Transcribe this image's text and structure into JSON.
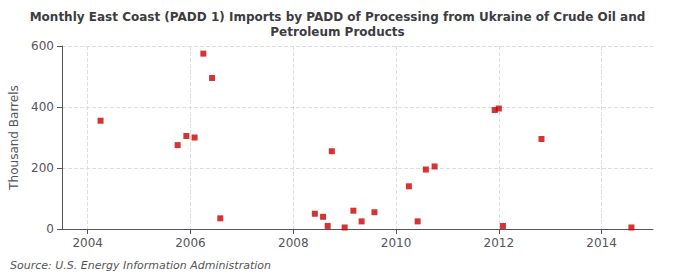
{
  "chart_data": {
    "type": "scatter",
    "title": "Monthly East Coast (PADD 1) Imports by PADD of Processing from Ukraine of Crude Oil and\nPetroleum Products",
    "ylabel": "Thousand Barrels",
    "annotations": [
      "Source: U.S. Energy Information Administration"
    ],
    "x": [
      2004.25,
      2005.75,
      2005.92,
      2006.08,
      2006.25,
      2006.42,
      2006.58,
      2008.42,
      2008.58,
      2008.67,
      2008.75,
      2009.0,
      2009.17,
      2009.33,
      2009.58,
      2010.25,
      2010.42,
      2010.58,
      2010.75,
      2011.92,
      2012.0,
      2012.08,
      2012.83,
      2014.58
    ],
    "values": [
      355,
      275,
      305,
      300,
      575,
      495,
      35,
      50,
      40,
      10,
      255,
      5,
      60,
      25,
      55,
      140,
      25,
      195,
      205,
      390,
      395,
      10,
      295,
      5
    ],
    "color": "#cc0000",
    "marker": "square",
    "xlim": [
      2003.5,
      2015.0
    ],
    "xticks": [
      2004,
      2006,
      2008,
      2010,
      2012,
      2014
    ],
    "ylim": [
      0,
      600
    ],
    "yticks": [
      0,
      200,
      400,
      600
    ],
    "grid": true
  }
}
